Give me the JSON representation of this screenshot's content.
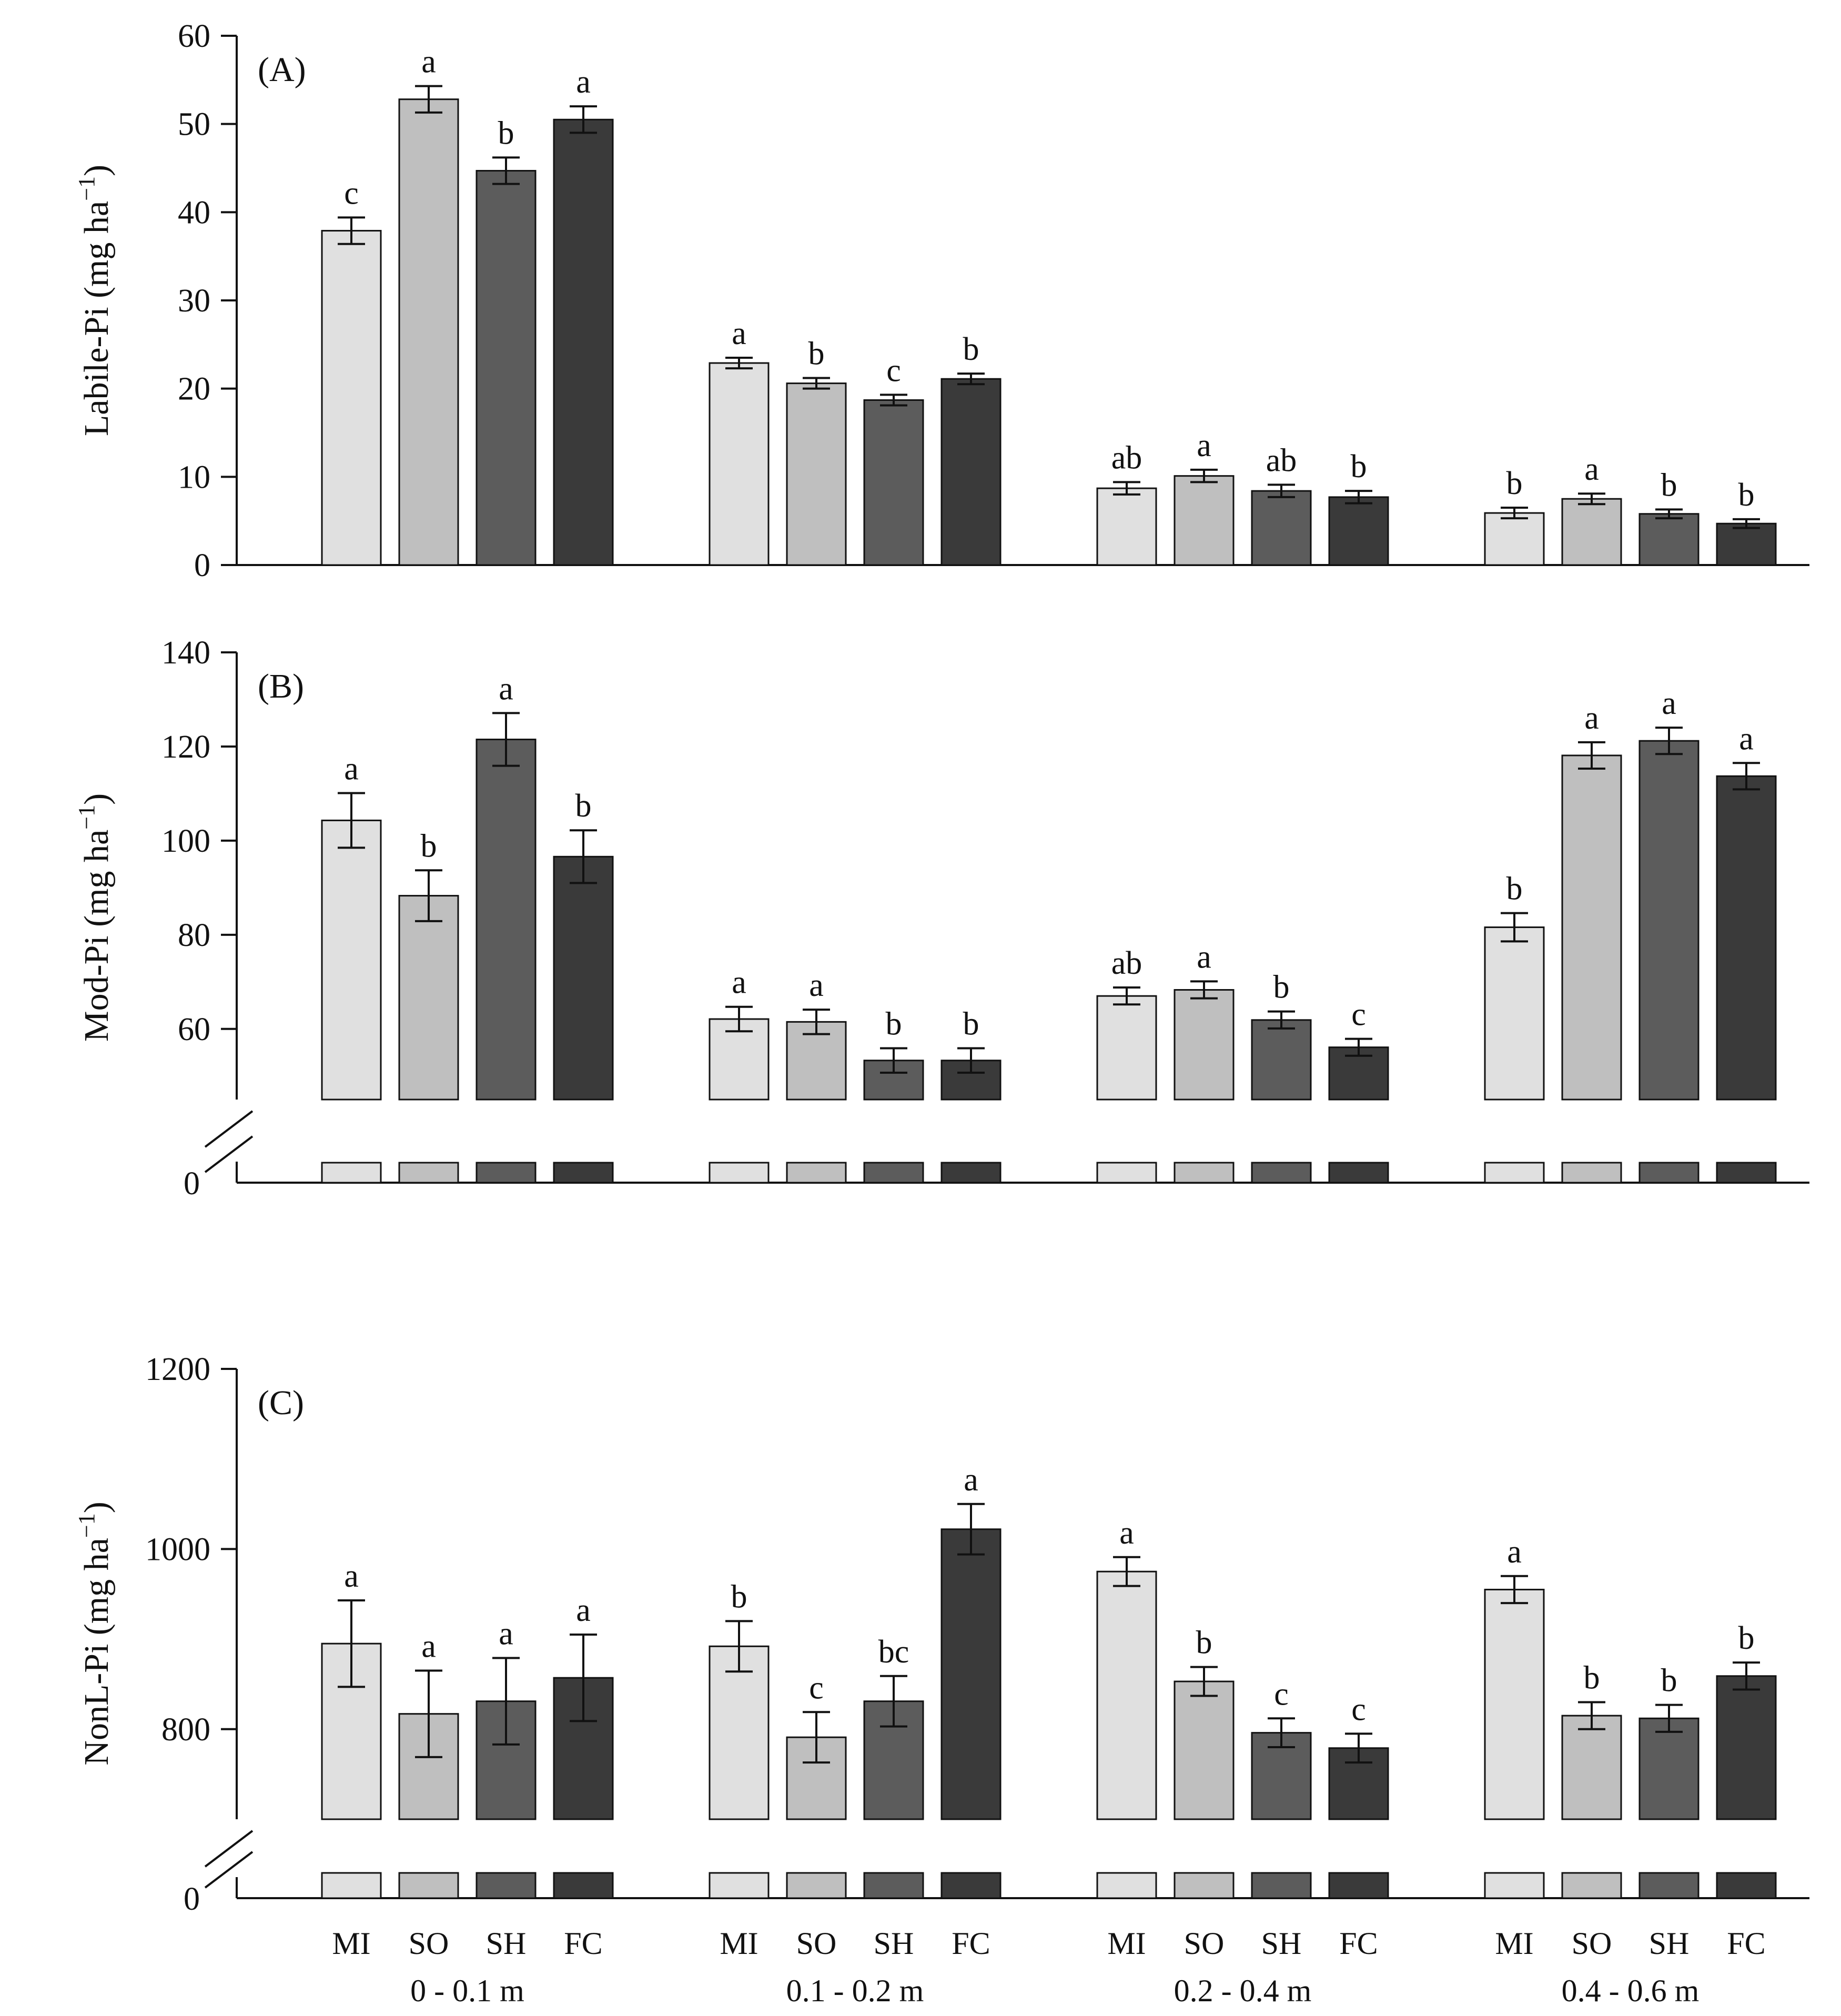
{
  "treatments": [
    "MI",
    "SO",
    "SH",
    "FC"
  ],
  "colors": {
    "MI": "#e0e0e0",
    "SO": "#bfbfbf",
    "SH": "#5c5c5c",
    "FC": "#3a3a3a",
    "outline": "#111111"
  },
  "group_labels": [
    "0 - 0.1 m",
    "0.1 - 0.2 m",
    "0.2 - 0.4 m",
    "0.4 - 0.6 m"
  ],
  "chart_data": [
    {
      "type": "bar",
      "panel_label": "(A)",
      "ylabel_main": "Labile-Pi (mg ha",
      "ylabel_sup": "−1",
      "ylabel_close": ")",
      "ylim": [
        0,
        60
      ],
      "yticks": [
        0,
        10,
        20,
        30,
        40,
        50,
        60
      ],
      "axis_break": false,
      "groups": [
        "0 - 0.1 m",
        "0.1 - 0.2 m",
        "0.2 - 0.4 m",
        "0.4 - 0.6 m"
      ],
      "series": [
        {
          "name": "MI",
          "values": [
            37.9,
            22.9,
            8.7,
            5.9
          ],
          "errors": [
            1.5,
            0.6,
            0.7,
            0.6
          ],
          "letters": [
            "c",
            "a",
            "ab",
            "b"
          ]
        },
        {
          "name": "SO",
          "values": [
            52.8,
            20.6,
            10.1,
            7.5
          ],
          "errors": [
            1.5,
            0.6,
            0.7,
            0.6
          ],
          "letters": [
            "a",
            "b",
            "a",
            "a"
          ]
        },
        {
          "name": "SH",
          "values": [
            44.7,
            18.7,
            8.4,
            5.8
          ],
          "errors": [
            1.5,
            0.6,
            0.7,
            0.5
          ],
          "letters": [
            "b",
            "c",
            "ab",
            "b"
          ]
        },
        {
          "name": "FC",
          "values": [
            50.5,
            21.1,
            7.7,
            4.7
          ],
          "errors": [
            1.5,
            0.6,
            0.7,
            0.5
          ],
          "letters": [
            "a",
            "b",
            "b",
            "b"
          ]
        }
      ]
    },
    {
      "type": "bar",
      "panel_label": "(B)",
      "ylabel_main": "Mod-Pi (mg ha",
      "ylabel_sup": "−1",
      "ylabel_close": ")",
      "ylim": [
        45,
        140
      ],
      "yticks": [
        60,
        80,
        100,
        120,
        140
      ],
      "axis_break": true,
      "baseline_label": "0",
      "groups": [
        "0 - 0.1 m",
        "0.1 - 0.2 m",
        "0.2 - 0.4 m",
        "0.4 - 0.6 m"
      ],
      "series": [
        {
          "name": "MI",
          "values": [
            104.3,
            62.1,
            67.0,
            81.6
          ],
          "errors": [
            5.8,
            2.6,
            1.8,
            3.0
          ],
          "letters": [
            "a",
            "a",
            "ab",
            "b"
          ]
        },
        {
          "name": "SO",
          "values": [
            88.3,
            61.5,
            68.3,
            118.1
          ],
          "errors": [
            5.4,
            2.6,
            1.8,
            2.8
          ],
          "letters": [
            "b",
            "a",
            "a",
            "a"
          ]
        },
        {
          "name": "SH",
          "values": [
            121.5,
            53.3,
            61.9,
            121.2
          ],
          "errors": [
            5.6,
            2.6,
            1.8,
            2.8
          ],
          "letters": [
            "a",
            "b",
            "b",
            "a"
          ]
        },
        {
          "name": "FC",
          "values": [
            96.6,
            53.3,
            56.1,
            113.7
          ],
          "errors": [
            5.6,
            2.6,
            1.8,
            2.8
          ],
          "letters": [
            "b",
            "b",
            "c",
            "a"
          ]
        }
      ]
    },
    {
      "type": "bar",
      "panel_label": "(C)",
      "ylabel_main": "NonL-Pi (mg ha",
      "ylabel_sup": "−1",
      "ylabel_close": ")",
      "ylim": [
        700,
        1200
      ],
      "yticks": [
        800,
        1000,
        1200
      ],
      "axis_break": true,
      "baseline_label": "0",
      "groups": [
        "0 - 0.1 m",
        "0.1 - 0.2 m",
        "0.2 - 0.4 m",
        "0.4 - 0.6 m"
      ],
      "series": [
        {
          "name": "MI",
          "values": [
            895,
            892,
            975,
            955
          ],
          "errors": [
            48,
            28,
            16,
            15
          ],
          "letters": [
            "a",
            "b",
            "a",
            "a"
          ]
        },
        {
          "name": "SO",
          "values": [
            817,
            791,
            853,
            815
          ],
          "errors": [
            48,
            28,
            16,
            15
          ],
          "letters": [
            "a",
            "c",
            "b",
            "b"
          ]
        },
        {
          "name": "SH",
          "values": [
            831,
            831,
            796,
            812
          ],
          "errors": [
            48,
            28,
            16,
            15
          ],
          "letters": [
            "a",
            "bc",
            "c",
            "b"
          ]
        },
        {
          "name": "FC",
          "values": [
            857,
            1022,
            779,
            859
          ],
          "errors": [
            48,
            28,
            16,
            15
          ],
          "letters": [
            "a",
            "a",
            "c",
            "b"
          ]
        }
      ]
    }
  ]
}
